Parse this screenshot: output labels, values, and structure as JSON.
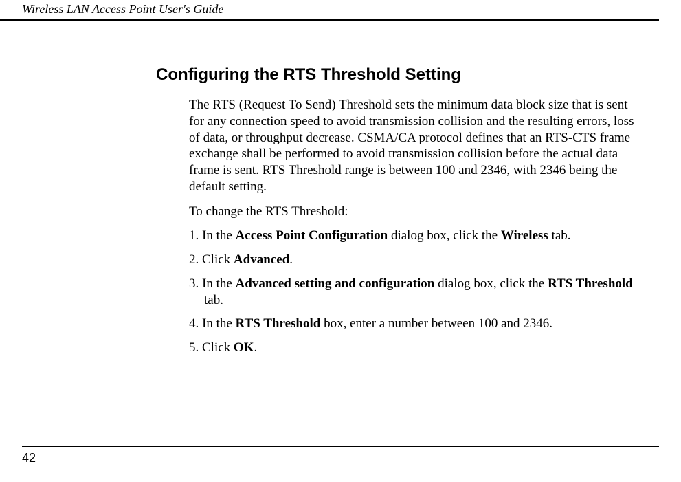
{
  "document": {
    "header_title": "Wireless LAN Access Point User's Guide",
    "page_number": "42"
  },
  "content": {
    "section_title": "Configuring the RTS Threshold Setting",
    "intro": "The RTS (Request To Send) Threshold sets the minimum data block size that is sent for any connection speed to avoid transmission collision and the resulting errors, loss of data, or throughput decrease. CSMA/CA protocol defines that an RTS-CTS frame exchange shall be performed to avoid transmission collision before the actual data frame is sent. RTS Threshold range is between 100 and 2346, with 2346 being the default setting.",
    "lead_in": "To change the RTS Threshold:",
    "steps": {
      "s1_pre": "1. In the ",
      "s1_b1": "Access Point Configuration",
      "s1_mid": " dialog box, click the ",
      "s1_b2": "Wireless",
      "s1_post": " tab.",
      "s2_pre": "2. Click ",
      "s2_b1": "Advanced",
      "s2_post": ".",
      "s3_pre": "3. In the ",
      "s3_b1": "Advanced setting and configuration",
      "s3_mid": " dialog box, click the ",
      "s3_b2": "RTS Threshold",
      "s3_post": " tab.",
      "s4_pre": "4. In the ",
      "s4_b1": "RTS Threshold",
      "s4_post": " box, enter a number between 100 and 2346.",
      "s5_pre": "5. Click ",
      "s5_b1": "OK",
      "s5_post": "."
    }
  },
  "colors": {
    "text": "#000000",
    "background": "#ffffff",
    "rule": "#000000"
  }
}
